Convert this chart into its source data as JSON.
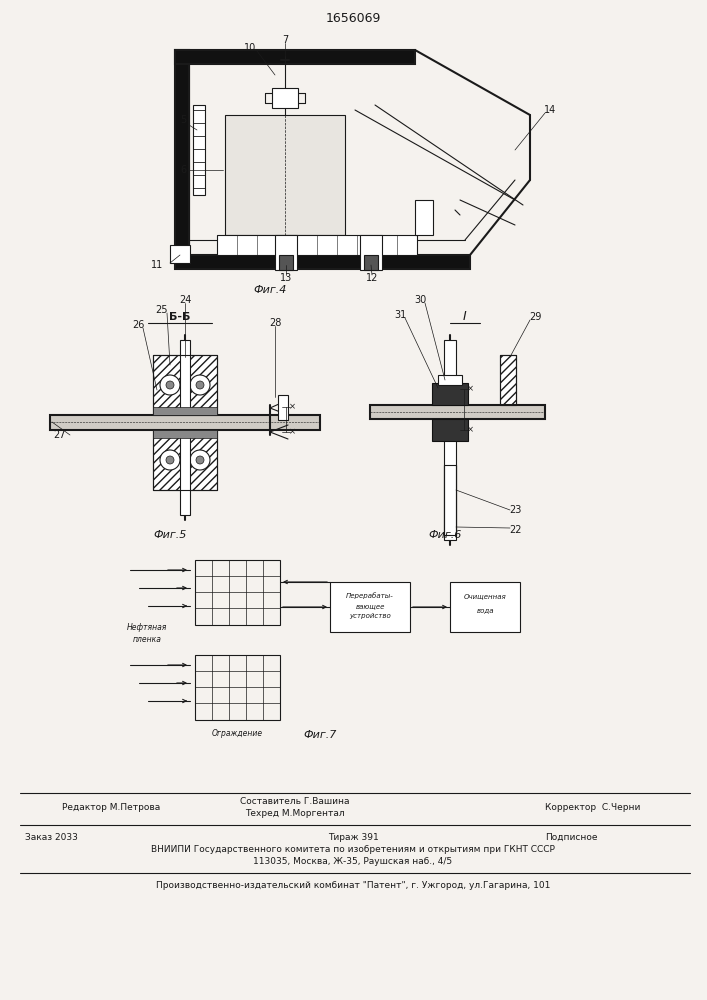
{
  "title": "1656069",
  "bg_color": "#f5f2ee",
  "line_color": "#1a1a1a",
  "fig4_label": "Фиг.4",
  "fig5_label": "Фиг.5",
  "fig6_label": "Фиг.6",
  "fig7_label": "Фиг.7",
  "section_bb": "Б-Б",
  "section_i": "I",
  "footer_line1_left": "Редактор М.Петрова",
  "footer_line1_center1": "Составитель Г.Вашина",
  "footer_line1_center2": "Техред М.Моргентал",
  "footer_line1_right": "Корректор  С.Черни",
  "footer_line2_left": "Заказ 2033",
  "footer_line2_center": "Тираж 391",
  "footer_line2_right": "Подписное",
  "footer_line3": "ВНИИПИ Государственного комитета по изобретениям и открытиям при ГКНТ СССР",
  "footer_line4": "113035, Москва, Ж-35, Раушская наб., 4/5",
  "footer_line5": "Производственно-издательский комбинат \"Патент\", г. Ужгород, ул.Гагарина, 101"
}
